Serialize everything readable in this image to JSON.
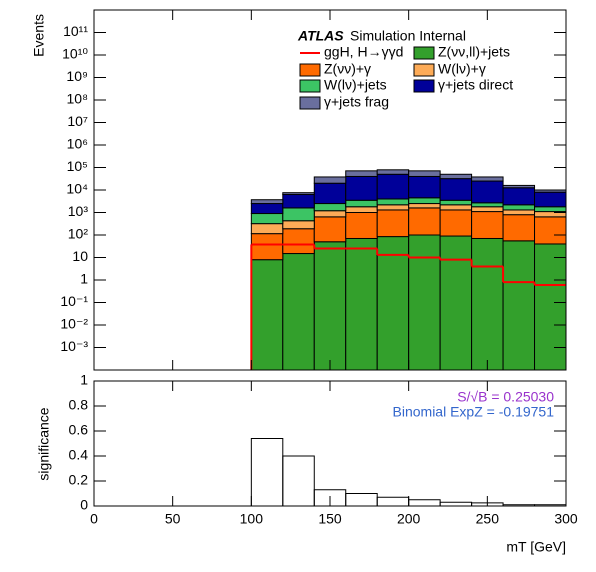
{
  "chart_data": [
    {
      "type": "stacked_histogram",
      "ylabel": "Events",
      "atlas_label": "ATLAS",
      "atlas_sublabel": "Simulation Internal",
      "log_y": true,
      "xlim": [
        0,
        300
      ],
      "xticks": [
        0,
        50,
        100,
        150,
        200,
        250,
        300
      ],
      "ylim": [
        0.0001,
        1000000000000
      ],
      "yticks": [
        {
          "value": 0.001,
          "label": "10⁻³"
        },
        {
          "value": 0.01,
          "label": "10⁻²"
        },
        {
          "value": 0.1,
          "label": "10⁻¹"
        },
        1,
        10,
        {
          "value": 100,
          "label": "10²"
        },
        {
          "value": 1000,
          "label": "10³"
        },
        {
          "value": 10000,
          "label": "10⁴"
        },
        {
          "value": 100000,
          "label": "10⁵"
        },
        {
          "value": 1000000,
          "label": "10⁶"
        },
        {
          "value": 10000000,
          "label": "10⁷"
        },
        {
          "value": 100000000,
          "label": "10⁸"
        },
        {
          "value": 1000000000,
          "label": "10⁹"
        },
        {
          "value": 10000000000,
          "label": "10¹⁰"
        },
        {
          "value": 100000000000,
          "label": "10¹¹"
        }
      ],
      "bins": [
        100,
        120,
        140,
        160,
        180,
        200,
        220,
        240,
        260,
        280,
        300
      ],
      "series": [
        {
          "name": "ggH, H→γγd",
          "color": "#ff0000",
          "stacked": false,
          "values": [
            38,
            38,
            25,
            25,
            13,
            10,
            8,
            4,
            0.8,
            0.6
          ]
        },
        {
          "name": "Z(νν,ll)+jets",
          "color": "#33a02c",
          "stacked": true,
          "values": [
            8,
            15,
            50,
            70,
            85,
            100,
            90,
            70,
            55,
            40
          ]
        },
        {
          "name": "Z(νν)+γ",
          "color": "#ff6a00",
          "stacked": true,
          "values": [
            107,
            175,
            590,
            930,
            1215,
            1500,
            1210,
            1030,
            745,
            600
          ]
        },
        {
          "name": "W(lν)+γ",
          "color": "#fdab57",
          "stacked": true,
          "values": [
            205,
            240,
            560,
            800,
            900,
            900,
            900,
            700,
            500,
            460
          ]
        },
        {
          "name": "W(lν)+jets",
          "color": "#3cc464",
          "stacked": true,
          "values": [
            580,
            1170,
            1300,
            1700,
            1800,
            2000,
            1300,
            900,
            900,
            700
          ]
        },
        {
          "name": "γ+jets direct",
          "color": "#000099",
          "stacked": true,
          "values": [
            1600,
            4700,
            17500,
            36500,
            46000,
            35500,
            28500,
            22300,
            10400,
            6200
          ]
        },
        {
          "name": "γ+jets frag",
          "color": "#6a6f9e",
          "stacked": true,
          "values": [
            1200,
            1300,
            18000,
            31000,
            29000,
            31000,
            18000,
            13000,
            3400,
            2000
          ]
        }
      ]
    },
    {
      "type": "histogram",
      "ylabel": "significance",
      "xlabel": "mT [GeV]",
      "xlim": [
        0,
        300
      ],
      "xticks": [
        0,
        50,
        100,
        150,
        200,
        250,
        300
      ],
      "ylim": [
        0,
        1
      ],
      "yticks": [
        0,
        0.2,
        0.4,
        0.6,
        0.8,
        1
      ],
      "bins": [
        100,
        120,
        140,
        160,
        180,
        200,
        220,
        240,
        260,
        280,
        300
      ],
      "values": [
        0.54,
        0.4,
        0.13,
        0.1,
        0.07,
        0.05,
        0.03,
        0.025,
        0.01,
        0.01
      ],
      "color": "#000000",
      "annotations": [
        {
          "text": "S/√B = 0.25030",
          "color": "#9933cc"
        },
        {
          "text": "Binomial ExpZ = -0.19751",
          "color": "#3366cc"
        }
      ]
    }
  ]
}
